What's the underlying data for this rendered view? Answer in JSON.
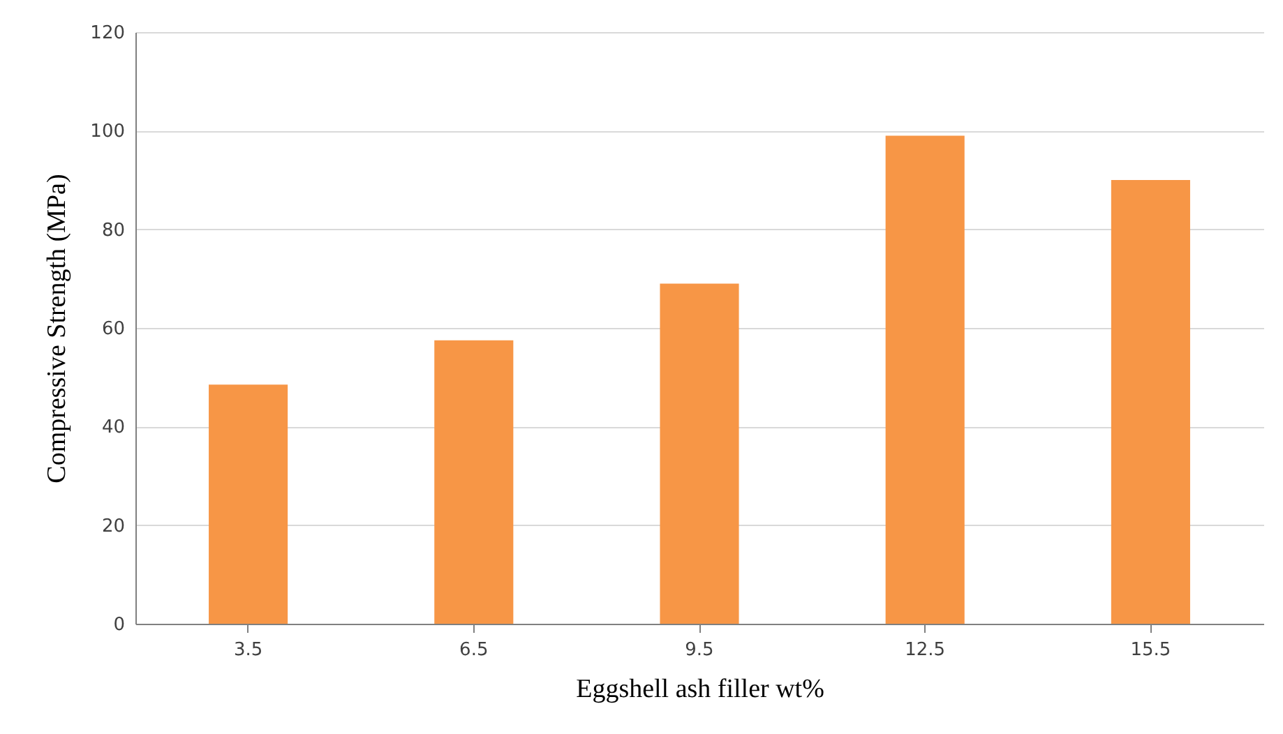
{
  "chart_data": {
    "type": "bar",
    "xlabel": "Eggshell  ash filler  wt%",
    "ylabel": "Compressive  Strength  (MPa)",
    "categories": [
      "3.5",
      "6.5",
      "9.5",
      "12.5",
      "15.5"
    ],
    "values": [
      48.5,
      57.5,
      69,
      99,
      90
    ],
    "color": "#f79646",
    "ylim": [
      0,
      120
    ],
    "yticks": [
      0,
      20,
      40,
      60,
      80,
      100,
      120
    ],
    "grid": "y"
  }
}
